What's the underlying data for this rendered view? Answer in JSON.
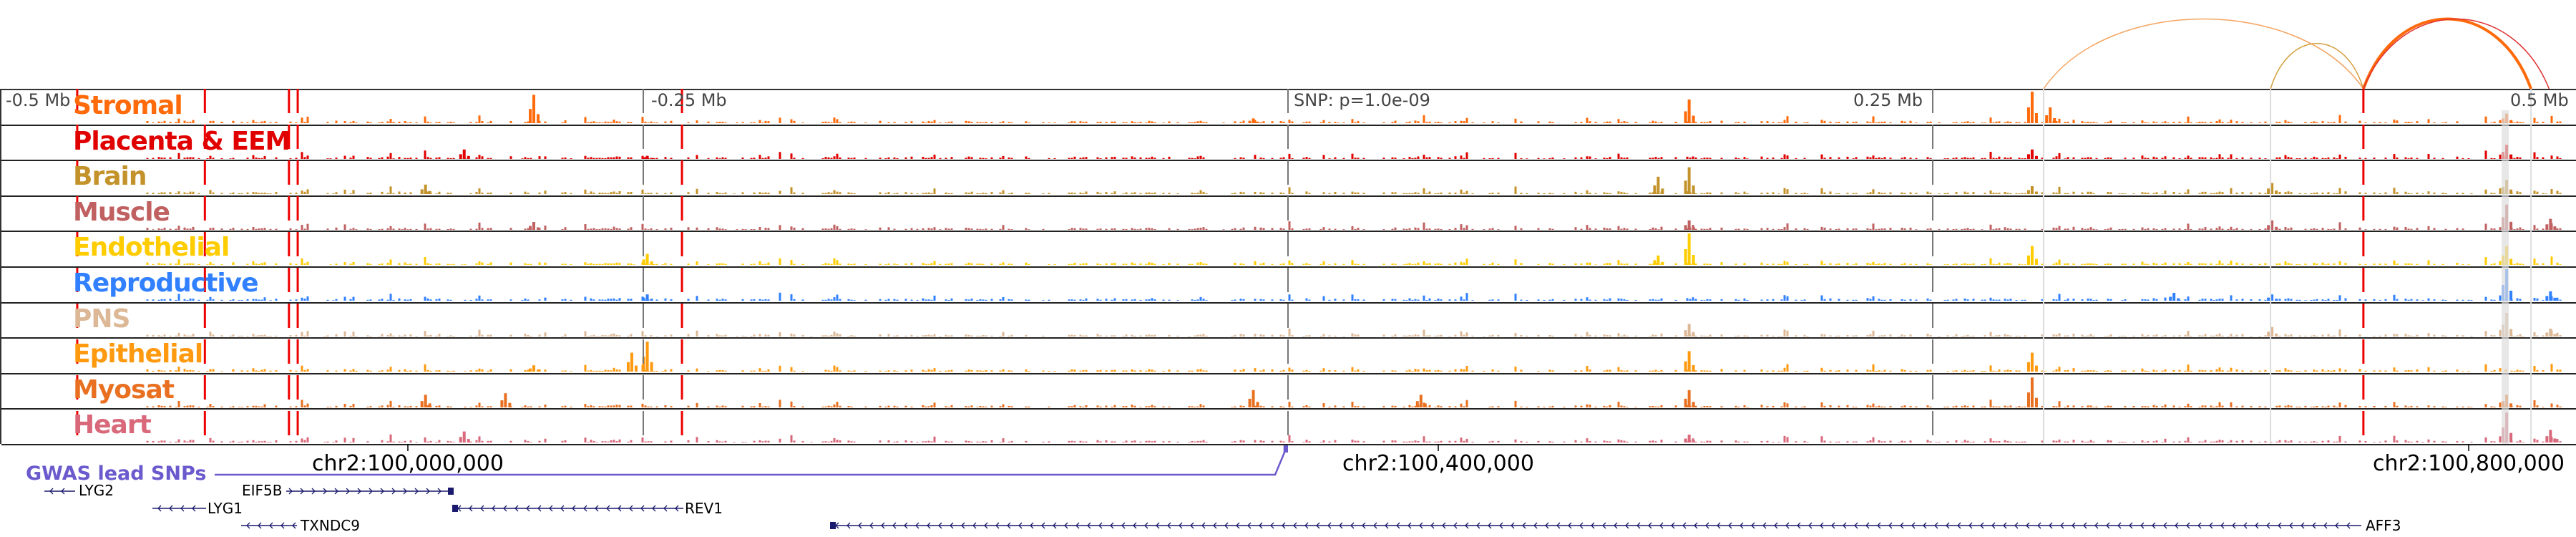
{
  "ruler": {
    "minus_half": "-0.5 Mb",
    "minus_quarter": "-0.25 Mb",
    "snp": "SNP: p=1.0e-09",
    "plus_quarter": "0.25 Mb",
    "plus_half": "0.5 Mb"
  },
  "axis": {
    "ticks": [
      "chr2:100,000,000",
      "chr2:100,400,000",
      "chr2:100,800,000"
    ]
  },
  "gwas": {
    "label": "GWAS lead SNPs",
    "color": "#6a5acd"
  },
  "genes": [
    {
      "name": "LYG2"
    },
    {
      "name": "EIF5B"
    },
    {
      "name": "LYG1"
    },
    {
      "name": "REV1"
    },
    {
      "name": "TXNDC9"
    },
    {
      "name": "AFF3"
    }
  ],
  "tracks": [
    {
      "label": "Stromal",
      "color": "#ff6a0a",
      "peaks": [
        [
          -0.293,
          0.9
        ],
        [
          0.155,
          0.75
        ],
        [
          0.288,
          1.0
        ],
        [
          0.295,
          0.5
        ],
        [
          0.472,
          0.3
        ],
        [
          -0.014,
          0.15
        ]
      ]
    },
    {
      "label": "Placenta & EEM",
      "color": "#e00000",
      "peaks": [
        [
          -0.32,
          0.3
        ],
        [
          0.288,
          0.3
        ],
        [
          0.472,
          0.45
        ],
        [
          -0.249,
          0.1
        ]
      ]
    },
    {
      "label": "Brain",
      "color": "#c4922a",
      "peaks": [
        [
          -0.335,
          0.3
        ],
        [
          0.155,
          0.85
        ],
        [
          0.143,
          0.55
        ],
        [
          0.288,
          0.25
        ],
        [
          0.381,
          0.35
        ],
        [
          0.472,
          0.45
        ]
      ]
    },
    {
      "label": "Muscle",
      "color": "#c06060",
      "peaks": [
        [
          -0.293,
          0.25
        ],
        [
          0.155,
          0.3
        ],
        [
          0.472,
          0.8
        ],
        [
          0.489,
          0.35
        ],
        [
          0.381,
          0.3
        ]
      ]
    },
    {
      "label": "Endothelial",
      "color": "#ffcc00",
      "peaks": [
        [
          0.155,
          1.0
        ],
        [
          0.143,
          0.3
        ],
        [
          0.288,
          0.6
        ],
        [
          -0.249,
          0.35
        ],
        [
          0.472,
          0.6
        ]
      ]
    },
    {
      "label": "Reproductive",
      "color": "#3080ff",
      "peaks": [
        [
          0.472,
          1.0
        ],
        [
          0.489,
          0.3
        ],
        [
          0.343,
          0.25
        ],
        [
          -0.249,
          0.2
        ],
        [
          0.381,
          0.2
        ]
      ]
    },
    {
      "label": "PNS",
      "color": "#dcb896",
      "peaks": [
        [
          0.155,
          0.4
        ],
        [
          0.472,
          0.75
        ],
        [
          0.381,
          0.3
        ],
        [
          0.489,
          0.25
        ]
      ]
    },
    {
      "label": "Epithelial",
      "color": "#ff9a10",
      "peaks": [
        [
          -0.249,
          0.95
        ],
        [
          -0.255,
          0.6
        ],
        [
          0.155,
          0.65
        ],
        [
          0.288,
          0.6
        ],
        [
          -0.293,
          0.2
        ]
      ]
    },
    {
      "label": "Myosat",
      "color": "#e87020",
      "peaks": [
        [
          -0.335,
          0.4
        ],
        [
          -0.304,
          0.45
        ],
        [
          0.288,
          0.95
        ],
        [
          0.155,
          0.55
        ],
        [
          0.051,
          0.4
        ],
        [
          -0.014,
          0.55
        ],
        [
          0.472,
          0.4
        ]
      ]
    },
    {
      "label": "Heart",
      "color": "#d8687a",
      "peaks": [
        [
          -0.32,
          0.35
        ],
        [
          0.472,
          0.95
        ],
        [
          0.489,
          0.4
        ],
        [
          0.155,
          0.25
        ]
      ]
    }
  ],
  "markers": {
    "red_dashed": [
      -0.4695,
      -0.42,
      -0.3874,
      -0.384,
      -0.235,
      0.417
    ],
    "gray_dashed": [
      -0.25,
      0,
      0.25
    ],
    "light_lines": [
      0.293,
      0.381,
      0.482
    ],
    "highlight_band": [
      0.472
    ]
  },
  "loops": [
    {
      "from": 0.293,
      "to": 0.417,
      "color": "#f4a460",
      "weight": 1.5
    },
    {
      "from": 0.381,
      "to": 0.417,
      "color": "#d4a040",
      "weight": 1.5
    },
    {
      "from": 0.417,
      "to": 0.482,
      "color": "#ff6a0a",
      "weight": 4
    },
    {
      "from": 0.417,
      "to": 0.489,
      "color": "#e03030",
      "weight": 1.5
    }
  ]
}
